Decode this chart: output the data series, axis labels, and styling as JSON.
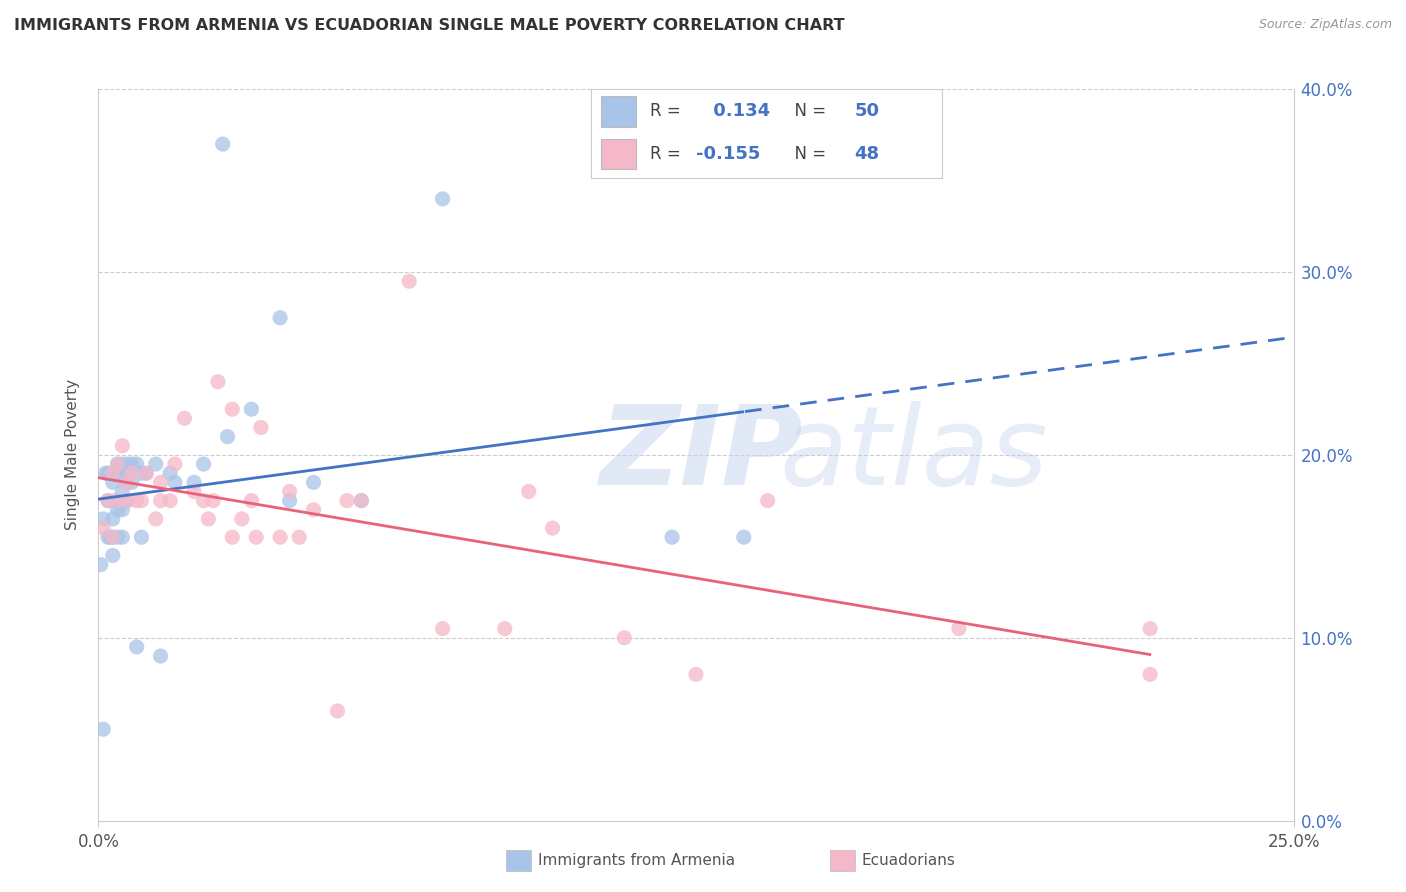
{
  "title": "IMMIGRANTS FROM ARMENIA VS ECUADORIAN SINGLE MALE POVERTY CORRELATION CHART",
  "source": "Source: ZipAtlas.com",
  "ylabel_label": "Single Male Poverty",
  "legend_label1": "Immigrants from Armenia",
  "legend_label2": "Ecuadorians",
  "r1": 0.134,
  "n1": 50,
  "r2": -0.155,
  "n2": 48,
  "color_blue": "#a8c4e8",
  "color_pink": "#f5b8c8",
  "line_blue": "#4472c4",
  "line_pink": "#e8637a",
  "blue_x": [
    0.0005,
    0.001,
    0.001,
    0.0015,
    0.002,
    0.002,
    0.002,
    0.0025,
    0.003,
    0.003,
    0.003,
    0.003,
    0.003,
    0.0035,
    0.004,
    0.004,
    0.004,
    0.004,
    0.005,
    0.005,
    0.005,
    0.005,
    0.005,
    0.006,
    0.006,
    0.006,
    0.006,
    0.007,
    0.007,
    0.008,
    0.008,
    0.009,
    0.009,
    0.01,
    0.012,
    0.013,
    0.015,
    0.016,
    0.02,
    0.022,
    0.026,
    0.027,
    0.032,
    0.038,
    0.04,
    0.045,
    0.055,
    0.072,
    0.12,
    0.135
  ],
  "blue_y": [
    0.14,
    0.165,
    0.05,
    0.19,
    0.155,
    0.175,
    0.19,
    0.155,
    0.145,
    0.155,
    0.165,
    0.185,
    0.19,
    0.175,
    0.155,
    0.17,
    0.19,
    0.195,
    0.155,
    0.17,
    0.18,
    0.19,
    0.195,
    0.175,
    0.185,
    0.19,
    0.195,
    0.185,
    0.195,
    0.095,
    0.195,
    0.155,
    0.19,
    0.19,
    0.195,
    0.09,
    0.19,
    0.185,
    0.185,
    0.195,
    0.37,
    0.21,
    0.225,
    0.275,
    0.175,
    0.185,
    0.175,
    0.34,
    0.155,
    0.155
  ],
  "pink_x": [
    0.001,
    0.002,
    0.003,
    0.003,
    0.004,
    0.004,
    0.005,
    0.006,
    0.006,
    0.007,
    0.008,
    0.009,
    0.01,
    0.012,
    0.013,
    0.013,
    0.015,
    0.016,
    0.018,
    0.02,
    0.022,
    0.023,
    0.024,
    0.025,
    0.028,
    0.028,
    0.03,
    0.032,
    0.033,
    0.034,
    0.038,
    0.04,
    0.042,
    0.045,
    0.05,
    0.052,
    0.055,
    0.065,
    0.072,
    0.085,
    0.09,
    0.095,
    0.11,
    0.125,
    0.14,
    0.18,
    0.22,
    0.22
  ],
  "pink_y": [
    0.16,
    0.175,
    0.155,
    0.19,
    0.175,
    0.195,
    0.205,
    0.175,
    0.185,
    0.19,
    0.175,
    0.175,
    0.19,
    0.165,
    0.185,
    0.175,
    0.175,
    0.195,
    0.22,
    0.18,
    0.175,
    0.165,
    0.175,
    0.24,
    0.225,
    0.155,
    0.165,
    0.175,
    0.155,
    0.215,
    0.155,
    0.18,
    0.155,
    0.17,
    0.06,
    0.175,
    0.175,
    0.295,
    0.105,
    0.105,
    0.18,
    0.16,
    0.1,
    0.08,
    0.175,
    0.105,
    0.105,
    0.08
  ],
  "xlim": [
    0,
    0.25
  ],
  "ylim": [
    0,
    0.4
  ],
  "xtick_vals": [
    0.0,
    0.25
  ],
  "ytick_vals": [
    0.0,
    0.1,
    0.2,
    0.3,
    0.4
  ],
  "grid_ytick_vals": [
    0.1,
    0.2,
    0.3,
    0.4
  ]
}
